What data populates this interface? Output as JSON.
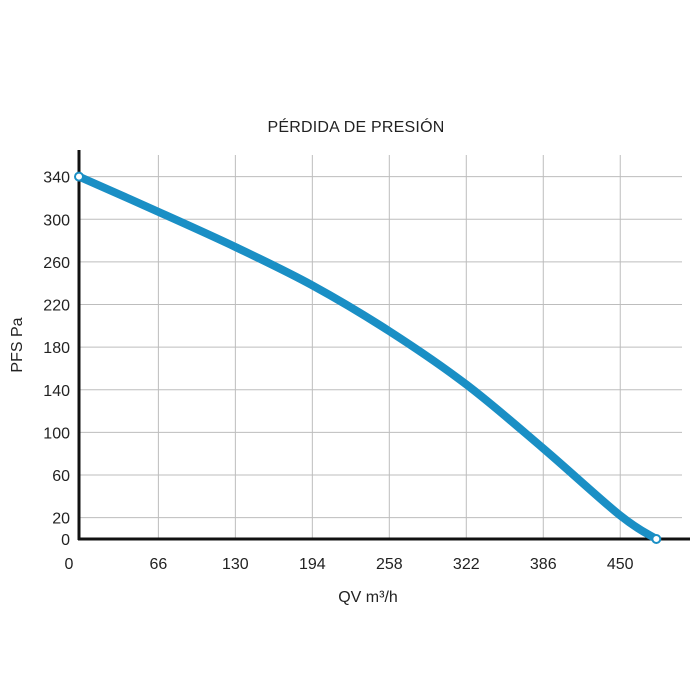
{
  "chart_data": {
    "type": "line",
    "title": "PÉRDIDA DE PRESIÓN",
    "xlabel": "QV m³/h",
    "ylabel": "PFS Pa",
    "x_ticks": [
      "0",
      "66",
      "130",
      "194",
      "258",
      "322",
      "386",
      "450"
    ],
    "y_ticks": [
      "0",
      "20",
      "60",
      "100",
      "140",
      "180",
      "220",
      "260",
      "300",
      "340"
    ],
    "xlim": [
      0,
      508
    ],
    "ylim": [
      0,
      365
    ],
    "grid": true,
    "series": [
      {
        "color": "#1a8fc5",
        "x": [
          0,
          60,
          130,
          194,
          258,
          322,
          386,
          450,
          480
        ],
        "y": [
          340,
          310,
          274,
          238,
          195,
          145,
          85,
          22,
          0
        ]
      }
    ],
    "markers": [
      {
        "x": 0,
        "y": 340
      },
      {
        "x": 480,
        "y": 0
      }
    ]
  }
}
